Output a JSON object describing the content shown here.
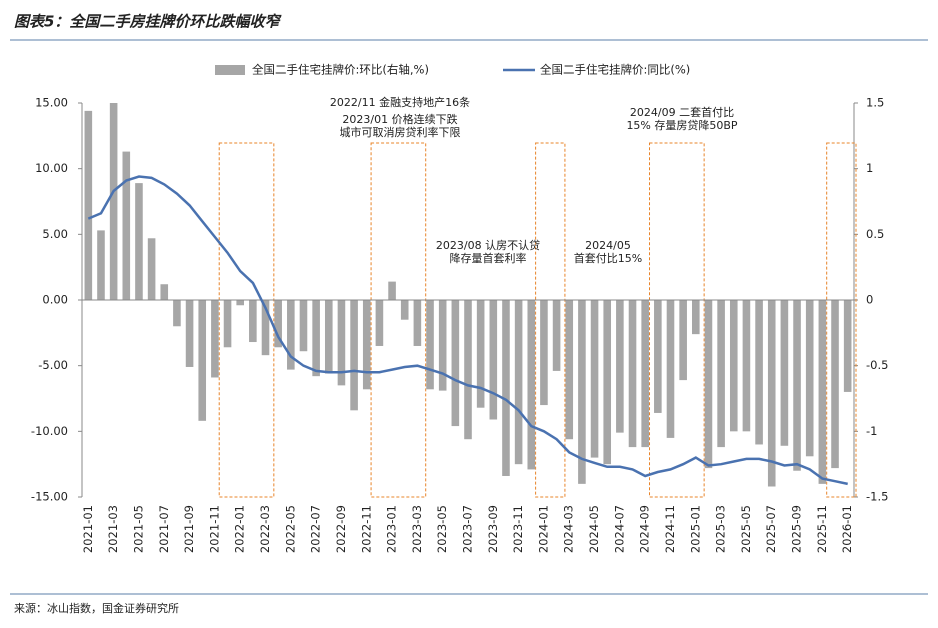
{
  "chart_data": {
    "type": "combo",
    "title": "图表5：全国二手房挂牌价环比跌幅收窄",
    "source": "来源：冰山指数，国金证券研究所",
    "categories": [
      "2021-01",
      null,
      "2021-03",
      null,
      "2021-05",
      null,
      "2021-07",
      null,
      "2021-09",
      null,
      "2021-11",
      null,
      "2022-01",
      null,
      "2022-03",
      null,
      "2022-05",
      null,
      "2022-07",
      null,
      "2022-09",
      null,
      "2022-11",
      null,
      "2023-01",
      null,
      "2023-03",
      null,
      "2023-05",
      null,
      "2023-07",
      null,
      "2023-09",
      null,
      "2023-11",
      null,
      "2024-01",
      null,
      "2024-03",
      null,
      "2024-05",
      null,
      "2024-07",
      null,
      "2024-09",
      null,
      "2024-11",
      null,
      "2025-01",
      null,
      "2025-03",
      null,
      "2025-05",
      null,
      "2025-07",
      null,
      "2025-09",
      null,
      "2025-11",
      null,
      "2026-01"
    ],
    "series": [
      {
        "name": "全国二手住宅挂牌价:环比(右轴,%)",
        "type": "bar",
        "axis": "y2",
        "color": "#a6a6a6",
        "values": [
          1.44,
          0.53,
          1.5,
          1.13,
          0.89,
          0.47,
          0.12,
          -0.2,
          -0.51,
          -0.92,
          -0.59,
          -0.36,
          -0.04,
          -0.32,
          -0.42,
          -0.36,
          -0.53,
          -0.39,
          -0.58,
          -0.56,
          -0.65,
          -0.84,
          -0.68,
          -0.35,
          0.14,
          -0.15,
          -0.35,
          -0.68,
          -0.69,
          -0.96,
          -1.06,
          -0.82,
          -0.91,
          -1.34,
          -1.25,
          -1.29,
          -0.8,
          -0.54,
          -1.06,
          -1.4,
          -1.2,
          -1.25,
          -1.01,
          -1.12,
          -1.12,
          -0.86,
          -1.05,
          -0.61,
          -0.26,
          -1.28,
          -1.12,
          -1.0,
          -1.0,
          -1.1,
          -1.42,
          -1.11,
          -1.3,
          -1.19,
          -1.4,
          -1.28,
          -0.7
        ]
      },
      {
        "name": "全国二手住宅挂牌价:同比(%)",
        "type": "line",
        "axis": "y",
        "color": "#4a72b0",
        "values": [
          6.2,
          6.6,
          8.3,
          9.1,
          9.4,
          9.3,
          8.8,
          8.1,
          7.2,
          6.0,
          4.8,
          3.6,
          2.2,
          1.3,
          -0.6,
          -2.8,
          -4.3,
          -5.0,
          -5.4,
          -5.5,
          -5.5,
          -5.4,
          -5.5,
          -5.5,
          -5.3,
          -5.1,
          -5.0,
          -5.3,
          -5.6,
          -6.1,
          -6.5,
          -6.7,
          -7.1,
          -7.6,
          -8.4,
          -9.6,
          -10.0,
          -10.6,
          -11.6,
          -12.1,
          -12.4,
          -12.7,
          -12.7,
          -12.9,
          -13.4,
          -13.1,
          -12.9,
          -12.5,
          -12.0,
          -12.6,
          -12.5,
          -12.3,
          -12.1,
          -12.1,
          -12.3,
          -12.6,
          -12.5,
          -12.9,
          -13.6,
          -13.8,
          -14.0
        ]
      }
    ],
    "ylim": [
      -15,
      15
    ],
    "yticks": [
      {
        "value": 15,
        "label": "15.00"
      },
      {
        "value": 10,
        "label": "10.00"
      },
      {
        "value": 5,
        "label": "5.00"
      },
      {
        "value": 0,
        "label": "0.00"
      },
      {
        "value": -5,
        "label": "-5.00"
      },
      {
        "value": -10,
        "label": "-10.00"
      },
      {
        "value": -15,
        "label": "-15.00"
      }
    ],
    "y2lim": [
      -1.5,
      1.5
    ],
    "y2ticks": [
      1.5,
      1,
      0.5,
      0,
      -0.5,
      -1,
      -1.5
    ],
    "annotations": [
      [
        "2022/11  金融支持地产16条"
      ],
      [
        "2023/01  价格连续下跌",
        "城市可取消房贷利率下限"
      ],
      [
        "2024/09  二套首付比",
        "15%  存量房贷降50BP"
      ],
      [
        "2023/08  认房不认贷",
        "降存量首套利率"
      ],
      [
        "2024/05",
        "首套付比15%"
      ]
    ]
  }
}
